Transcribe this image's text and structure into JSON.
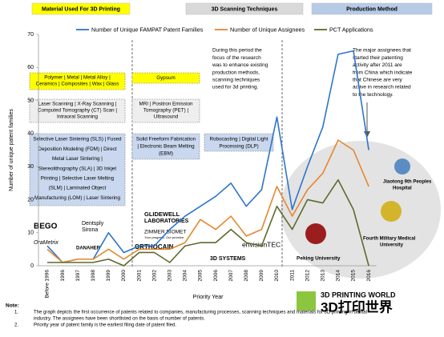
{
  "chart_data": {
    "type": "line",
    "x_label": "Priority Year",
    "y_label": "Number of unique patent families",
    "categories": [
      "Before 1996",
      "1996",
      "1997",
      "1998",
      "1999",
      "2000",
      "2001",
      "2002",
      "2003",
      "2004",
      "2005",
      "2006",
      "2007",
      "2008",
      "2009",
      "2010",
      "2011",
      "2012",
      "2013",
      "2014",
      "2015",
      "2016"
    ],
    "series": [
      {
        "name": "Number of Unique FAMPAT Patent Families",
        "color": "#2e75c9",
        "values": [
          6,
          1,
          2,
          2,
          10,
          4,
          6,
          6,
          11,
          15,
          18,
          21,
          25,
          18,
          23,
          45,
          17,
          30,
          42,
          64,
          65,
          35
        ]
      },
      {
        "name": "Number of Unique Assignees",
        "color": "#e6862e",
        "values": [
          5,
          1,
          2,
          2,
          5,
          2,
          5,
          5,
          5,
          7,
          14,
          11,
          15,
          9,
          11,
          24,
          15,
          23,
          28,
          38,
          35,
          24
        ]
      },
      {
        "name": "PCT Applications",
        "color": "#5d6b2a",
        "values": [
          1,
          1,
          1,
          1,
          2,
          0,
          4,
          4,
          1,
          6,
          7,
          7,
          11,
          7,
          6,
          18,
          11,
          20,
          19,
          26,
          17,
          0
        ]
      }
    ],
    "ylim": [
      0,
      70
    ],
    "yticks": [
      0,
      10,
      20,
      30,
      40,
      50,
      60,
      70
    ],
    "grid": false
  },
  "headers": [
    "Material Used For 3D Printing",
    "3D Scanning Techniques",
    "Production Method"
  ],
  "boxes": {
    "materials_1": [
      "Polymer | Metal | Metal Alloy |",
      "Ceramics | Composites | Wax | Glass"
    ],
    "materials_2": [
      "Gypsum"
    ],
    "scanning_1": [
      "Laser Scanning | X-Ray Scanning |",
      "Computed Tomography (CT) Scan |",
      "Intraoral Scanning"
    ],
    "scanning_2": [
      "MRI | Positron Emission",
      "Tomography (PET) |",
      "Ultrasound"
    ],
    "production_1": [
      "Selective Laser Sintering (SLS) | Fused",
      "Deposition Modeling (FDM) | Direct",
      "Metal Laser Sintering |",
      "Stereolithography (SLA) | 3D Inkjet",
      "Printing | Selective Laser Melting",
      "(SLM) | Laminated Object",
      "Manufacturing (LOM) | Laser Sintering"
    ],
    "production_2": [
      "Solid Freeform Fabrication",
      "| Electronic Beam Melting",
      "(EBM)"
    ],
    "production_3": [
      "Robocasting | Digital Light",
      "Processing (DLP)"
    ]
  },
  "annotations": {
    "period": [
      "During this period the",
      "focus of the research",
      "was to enhance existing",
      "production methods,",
      "scanning techniques",
      "used for 3d printing."
    ],
    "china": [
      "The major assignees that",
      "started their patenting",
      "activity after 2011 are",
      "from China which indicate",
      "that Chinese are very",
      "active in research related",
      "to the technology."
    ]
  },
  "logos": {
    "bego": "BEGO",
    "dentsply": "Dentsply",
    "sirona": "Sirona",
    "orametrix": "OraMetrix",
    "danaher": "DANAHER",
    "glidewell": "GLIDEWELL",
    "laboratories": "LABORATORIES",
    "zimmer": "ZIMMER BIOMET",
    "zimmer_tag": "Your progress. Our promise.",
    "orthocain": "ORTHOCAIN",
    "systems": "3D SYSTEMS",
    "envisiontec": "envisionTEC",
    "peking": "Peking University",
    "jiaotong_1": "Jiaotong 9th Peoples",
    "jiaotong_2": "Hospital",
    "fourth_1": "Fourth Military Medical",
    "fourth_2": "University",
    "watermark_en": "3D PRINTING WORLD",
    "watermark_cn": "3D打印世界"
  },
  "notes": {
    "title": "Note:",
    "items": [
      {
        "num": "1.",
        "lines": [
          "The graph depicts the first occurrence of patents related to companies, manufacturing processes, scanning techniques and materials for 3D printing in dental",
          "industry. The assignees have been shortlisted on the basis of number of patents."
        ]
      },
      {
        "num": "2.",
        "lines": [
          "Priority year of patent family is the earliest filing date of patent filed."
        ]
      }
    ]
  }
}
